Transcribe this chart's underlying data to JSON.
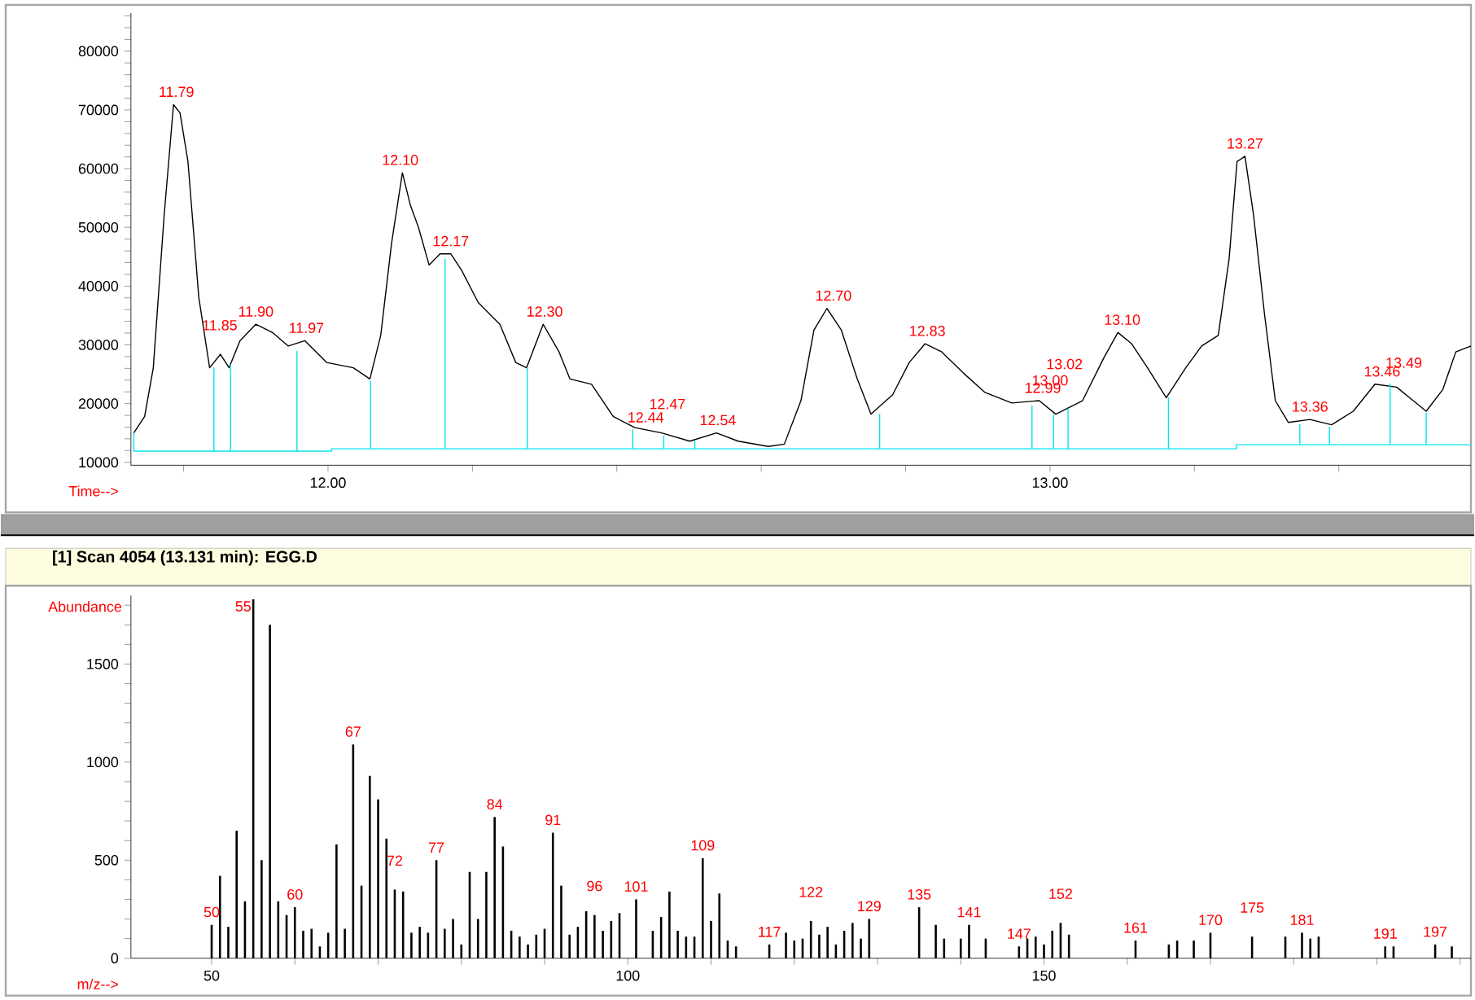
{
  "chart_data": [
    {
      "type": "line",
      "xlabel": "Time-->",
      "xlim": [
        11.727,
        13.583
      ],
      "ylim": [
        9500,
        86500
      ],
      "xticks": [
        {
          "value": 11.8,
          "label": null
        },
        {
          "value": 12.0,
          "label": "12.00"
        },
        {
          "value": 12.2,
          "label": null
        },
        {
          "value": 12.4,
          "label": null
        },
        {
          "value": 12.6,
          "label": null
        },
        {
          "value": 12.8,
          "label": null
        },
        {
          "value": 13.0,
          "label": "13.00"
        },
        {
          "value": 13.2,
          "label": null
        },
        {
          "value": 13.4,
          "label": null
        }
      ],
      "yticks": [
        10000,
        {
          "value": 12000,
          "label": null
        },
        {
          "value": 14000,
          "label": null
        },
        {
          "value": 16000,
          "label": null
        },
        {
          "value": 18000,
          "label": null
        },
        20000,
        {
          "value": 22000,
          "label": null
        },
        {
          "value": 24000,
          "label": null
        },
        {
          "value": 26000,
          "label": null
        },
        {
          "value": 28000,
          "label": null
        },
        30000,
        {
          "value": 32000,
          "label": null
        },
        {
          "value": 34000,
          "label": null
        },
        {
          "value": 36000,
          "label": null
        },
        {
          "value": 38000,
          "label": null
        },
        40000,
        {
          "value": 42000,
          "label": null
        },
        {
          "value": 44000,
          "label": null
        },
        {
          "value": 46000,
          "label": null
        },
        {
          "value": 48000,
          "label": null
        },
        50000,
        {
          "value": 52000,
          "label": null
        },
        {
          "value": 54000,
          "label": null
        },
        {
          "value": 56000,
          "label": null
        },
        {
          "value": 58000,
          "label": null
        },
        60000,
        {
          "value": 62000,
          "label": null
        },
        {
          "value": 64000,
          "label": null
        },
        {
          "value": 66000,
          "label": null
        },
        {
          "value": 68000,
          "label": null
        },
        70000,
        {
          "value": 72000,
          "label": null
        },
        {
          "value": 74000,
          "label": null
        },
        {
          "value": 76000,
          "label": null
        },
        {
          "value": 78000,
          "label": null
        },
        80000,
        {
          "value": 82000,
          "label": null
        },
        {
          "value": 84000,
          "label": null
        },
        {
          "value": 86000,
          "label": null
        }
      ],
      "series": [
        {
          "color": "#000000",
          "x": [
            11.731,
            11.746,
            11.758,
            11.773,
            11.786,
            11.795,
            11.806,
            11.821,
            11.836,
            11.851,
            11.863,
            11.878,
            11.9,
            11.923,
            11.945,
            11.968,
            11.998,
            12.035,
            12.058,
            12.073,
            12.088,
            12.103,
            12.114,
            12.125,
            12.14,
            12.155,
            12.17,
            12.185,
            12.208,
            12.238,
            12.26,
            12.275,
            12.298,
            12.32,
            12.335,
            12.365,
            12.395,
            12.425,
            12.462,
            12.501,
            12.538,
            12.568,
            12.61,
            12.632,
            12.655,
            12.673,
            12.691,
            12.711,
            12.733,
            12.752,
            12.782,
            12.805,
            12.827,
            12.85,
            12.88,
            12.91,
            12.947,
            12.985,
            13.008,
            13.045,
            13.075,
            13.094,
            13.113,
            13.135,
            13.161,
            13.188,
            13.21,
            13.233,
            13.248,
            13.259,
            13.27,
            13.282,
            13.297,
            13.312,
            13.33,
            13.36,
            13.39,
            13.42,
            13.45,
            13.48,
            13.503,
            13.521,
            13.544,
            13.562,
            13.583
          ],
          "values": [
            15000,
            17800,
            26100,
            52000,
            70900,
            69500,
            61200,
            38100,
            26100,
            28400,
            26100,
            30700,
            33500,
            32100,
            29800,
            30700,
            27000,
            26100,
            24200,
            31600,
            47300,
            59300,
            53800,
            50100,
            43600,
            45500,
            45500,
            42700,
            37200,
            33500,
            27000,
            26100,
            33500,
            28800,
            24200,
            23300,
            17800,
            15900,
            15000,
            13600,
            15000,
            13600,
            12700,
            13100,
            20500,
            32500,
            36200,
            32500,
            24200,
            18200,
            21500,
            27000,
            30200,
            28800,
            25200,
            21900,
            20100,
            20500,
            18200,
            20500,
            27900,
            32100,
            30200,
            26100,
            21000,
            26100,
            29800,
            31600,
            44600,
            61200,
            62100,
            52000,
            35300,
            20500,
            16800,
            17300,
            16400,
            18700,
            23300,
            22800,
            20500,
            18700,
            22400,
            28800,
            29800
          ]
        },
        {
          "color": "#00e5ee",
          "x": [
            11.731,
            11.731,
            11.842,
            11.842,
            11.842,
            11.865,
            11.865,
            11.865,
            11.957,
            11.957,
            11.957,
            12.005,
            12.005,
            12.059,
            12.059,
            12.059,
            12.162,
            12.162,
            12.162,
            12.276,
            12.276,
            12.276,
            12.422,
            12.422,
            12.422,
            12.465,
            12.465,
            12.465,
            12.508,
            12.508,
            12.508,
            12.764,
            12.764,
            12.764,
            12.975,
            12.975,
            12.975,
            13.005,
            13.005,
            13.005,
            13.025,
            13.025,
            13.025,
            13.164,
            13.164,
            13.164,
            13.258,
            13.258,
            13.346,
            13.346,
            13.346,
            13.387,
            13.387,
            13.387,
            13.471,
            13.471,
            13.471,
            13.521,
            13.521,
            13.521,
            13.583
          ],
          "values": [
            15000,
            11900,
            11900,
            26100,
            11900,
            11900,
            26600,
            11900,
            11900,
            28900,
            11900,
            11900,
            12300,
            12300,
            23800,
            12300,
            12300,
            44600,
            12300,
            12300,
            26100,
            12300,
            12300,
            15500,
            12300,
            12300,
            14500,
            12300,
            12300,
            13600,
            12300,
            12300,
            18200,
            12300,
            12300,
            19600,
            12300,
            12300,
            18200,
            12300,
            12300,
            19100,
            12300,
            12300,
            21000,
            12300,
            12300,
            13000,
            13000,
            16400,
            13000,
            13000,
            16000,
            13000,
            13000,
            23300,
            13000,
            13000,
            18400,
            13000,
            13000
          ]
        }
      ],
      "annotations": [
        {
          "text": "11.79",
          "x": 11.79,
          "y": 70900
        },
        {
          "text": "11.85",
          "x": 11.85,
          "y": 28400
        },
        {
          "text": "11.90",
          "x": 11.9,
          "y": 33500
        },
        {
          "text": "11.97",
          "x": 11.97,
          "y": 30700
        },
        {
          "text": "12.10",
          "x": 12.1,
          "y": 59300
        },
        {
          "text": "12.17",
          "x": 12.17,
          "y": 45500
        },
        {
          "text": "12.30",
          "x": 12.3,
          "y": 33500
        },
        {
          "text": "12.44",
          "x": 12.44,
          "y": 15500
        },
        {
          "text": "12.47",
          "x": 12.47,
          "y": 15000
        },
        {
          "text": "12.54",
          "x": 12.54,
          "y": 15000
        },
        {
          "text": "12.70",
          "x": 12.7,
          "y": 36200
        },
        {
          "text": "12.83",
          "x": 12.83,
          "y": 30200
        },
        {
          "text": "12.99",
          "x": 12.99,
          "y": 20500
        },
        {
          "text": "13.00",
          "x": 13.0,
          "y": 19000
        },
        {
          "text": "13.02",
          "x": 13.02,
          "y": 19000
        },
        {
          "text": "13.10",
          "x": 13.1,
          "y": 32100
        },
        {
          "text": "13.27",
          "x": 13.27,
          "y": 62100
        },
        {
          "text": "13.36",
          "x": 13.36,
          "y": 17300
        },
        {
          "text": "13.46",
          "x": 13.46,
          "y": 23300
        },
        {
          "text": "13.49",
          "x": 13.49,
          "y": 22000
        }
      ]
    },
    {
      "type": "bar",
      "title": "[1] Scan 4054 (13.131 min): EGG.D",
      "xlabel": "m/z-->",
      "ylabel": "Abundance",
      "color": "#000000",
      "xlim": [
        40.3,
        201.3
      ],
      "ylim": [
        0,
        1850
      ],
      "xticks": [
        50,
        {
          "value": 60,
          "label": null
        },
        {
          "value": 70,
          "label": null
        },
        {
          "value": 80,
          "label": null
        },
        {
          "value": 90,
          "label": null
        },
        100,
        {
          "value": 110,
          "label": null
        },
        {
          "value": 120,
          "label": null
        },
        {
          "value": 130,
          "label": null
        },
        {
          "value": 140,
          "label": null
        },
        150,
        {
          "value": 160,
          "label": null
        },
        {
          "value": 170,
          "label": null
        },
        {
          "value": 180,
          "label": null
        },
        {
          "value": 190,
          "label": null
        },
        {
          "value": 200,
          "label": null
        }
      ],
      "yticks": [
        0,
        {
          "value": 100,
          "label": null
        },
        {
          "value": 200,
          "label": null
        },
        {
          "value": 300,
          "label": null
        },
        {
          "value": 400,
          "label": null
        },
        500,
        {
          "value": 600,
          "label": null
        },
        {
          "value": 700,
          "label": null
        },
        {
          "value": 800,
          "label": null
        },
        {
          "value": 900,
          "label": null
        },
        1000,
        {
          "value": 1100,
          "label": null
        },
        {
          "value": 1200,
          "label": null
        },
        {
          "value": 1300,
          "label": null
        },
        {
          "value": 1400,
          "label": null
        },
        1500,
        {
          "value": 1600,
          "label": null
        },
        {
          "value": 1700,
          "label": null
        },
        {
          "value": 1800,
          "label": null
        }
      ],
      "x": [
        50,
        51,
        52,
        53,
        54,
        55,
        56,
        57,
        58,
        59,
        60,
        61,
        62,
        63,
        64,
        65,
        66,
        67,
        68,
        69,
        70,
        71,
        72,
        73,
        74,
        75,
        76,
        77,
        78,
        79,
        80,
        81,
        82,
        83,
        84,
        85,
        86,
        87,
        88,
        89,
        90,
        91,
        92,
        93,
        94,
        95,
        96,
        97,
        98,
        99,
        101,
        103,
        104,
        105,
        106,
        107,
        108,
        109,
        110,
        111,
        112,
        113,
        117,
        119,
        120,
        121,
        122,
        123,
        124,
        125,
        126,
        127,
        128,
        129,
        135,
        137,
        138,
        140,
        141,
        143,
        147,
        148,
        149,
        150,
        151,
        152,
        153,
        161,
        165,
        166,
        168,
        170,
        175,
        179,
        181,
        182,
        183,
        191,
        192,
        197,
        199
      ],
      "values": [
        170,
        420,
        160,
        650,
        290,
        1830,
        500,
        1700,
        290,
        220,
        260,
        140,
        150,
        60,
        130,
        580,
        150,
        1090,
        370,
        930,
        810,
        610,
        350,
        340,
        130,
        160,
        130,
        500,
        150,
        200,
        70,
        440,
        200,
        440,
        720,
        570,
        140,
        110,
        70,
        120,
        150,
        640,
        370,
        120,
        160,
        240,
        220,
        140,
        190,
        230,
        300,
        140,
        210,
        340,
        140,
        110,
        110,
        510,
        190,
        330,
        90,
        60,
        70,
        130,
        90,
        100,
        190,
        120,
        160,
        70,
        140,
        180,
        100,
        200,
        260,
        170,
        100,
        100,
        170,
        100,
        60,
        100,
        110,
        70,
        140,
        180,
        120,
        90,
        70,
        90,
        90,
        130,
        110,
        110,
        130,
        100,
        110,
        60,
        60,
        70,
        60
      ],
      "annotations": [
        {
          "text": "50",
          "x": 50,
          "y": 170
        },
        {
          "text": "55",
          "x": 55,
          "y": 1830
        },
        {
          "text": "60",
          "x": 60,
          "y": 260
        },
        {
          "text": "67",
          "x": 67,
          "y": 1090
        },
        {
          "text": "72",
          "x": 72,
          "y": 350
        },
        {
          "text": "77",
          "x": 77,
          "y": 500
        },
        {
          "text": "84",
          "x": 84,
          "y": 720
        },
        {
          "text": "91",
          "x": 91,
          "y": 640
        },
        {
          "text": "96",
          "x": 96,
          "y": 220
        },
        {
          "text": "101",
          "x": 101,
          "y": 300
        },
        {
          "text": "109",
          "x": 109,
          "y": 510
        },
        {
          "text": "117",
          "x": 117,
          "y": 70
        },
        {
          "text": "122",
          "x": 122,
          "y": 190
        },
        {
          "text": "129",
          "x": 129,
          "y": 200
        },
        {
          "text": "135",
          "x": 135,
          "y": 260
        },
        {
          "text": "141",
          "x": 141,
          "y": 170
        },
        {
          "text": "147",
          "x": 147,
          "y": 60
        },
        {
          "text": "152",
          "x": 152,
          "y": 180
        },
        {
          "text": "161",
          "x": 161,
          "y": 90
        },
        {
          "text": "170",
          "x": 170,
          "y": 130
        },
        {
          "text": "175",
          "x": 175,
          "y": 110
        },
        {
          "text": "181",
          "x": 181,
          "y": 130
        },
        {
          "text": "191",
          "x": 191,
          "y": 60
        },
        {
          "text": "197",
          "x": 197,
          "y": 70
        }
      ]
    }
  ]
}
